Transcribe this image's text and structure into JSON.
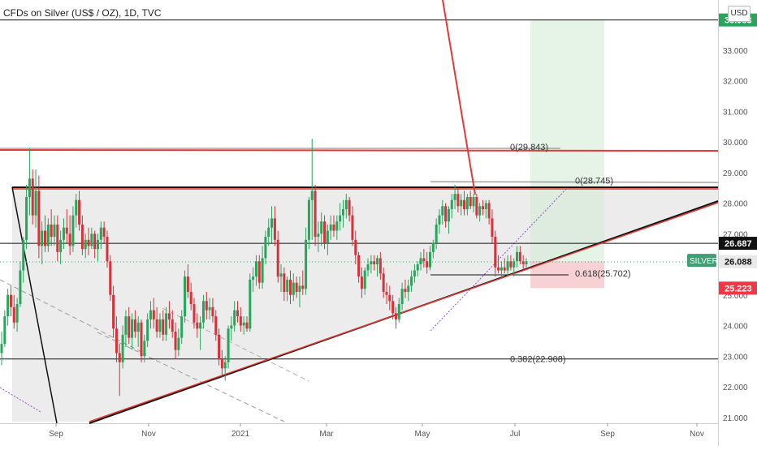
{
  "header": {
    "title": "CFDs on Silver (US$ / OZ), 1D, TVC",
    "currency": "USD"
  },
  "chart_data": {
    "type": "candlestick",
    "title": "CFDs on Silver (US$ / OZ), 1D, TVC",
    "symbol": "SILVER",
    "y_tick_labels": [
      "21.000",
      "22.000",
      "23.000",
      "24.000",
      "25.000",
      "26.000",
      "27.000",
      "28.000",
      "29.000",
      "30.000",
      "31.000",
      "32.000",
      "33.000"
    ],
    "x_tick_labels": [
      "Sep",
      "Nov",
      "2021",
      "Mar",
      "May",
      "Jul",
      "Sep",
      "Nov"
    ],
    "ylim": [
      20.9,
      34.4
    ],
    "price_badges": [
      {
        "text": "33.983",
        "value": 33.983,
        "bg": "#26a65b",
        "fg": "#ffffff"
      },
      {
        "text": "26.687",
        "value": 26.687,
        "bg": "#111111",
        "fg": "#ffffff"
      },
      {
        "text": "26.088",
        "value": 26.088,
        "bg": "#e9e9e9",
        "fg": "#111111"
      },
      {
        "text": "25.223",
        "value": 25.223,
        "bg": "#f23645",
        "fg": "#ffffff"
      }
    ],
    "symbol_badge": {
      "text": "SILVER",
      "value": 26.13,
      "bg": "#3f9f74",
      "fg": "#ffffff"
    },
    "horizontal_levels": [
      {
        "value": 33.983,
        "color": "#111111"
      },
      {
        "value": 26.687,
        "color": "#111111"
      },
      {
        "value": 22.908,
        "color": "#111111"
      }
    ],
    "fib_labels": [
      {
        "text": "0(29.843)",
        "value": 29.843
      },
      {
        "text": "0(28.745)",
        "value": 28.745
      },
      {
        "text": "0.618(25.702)",
        "value": 25.702
      },
      {
        "text": "0.382(22.908)",
        "value": 22.908
      }
    ],
    "position": {
      "entry": 26.1,
      "target": 33.983,
      "stop": 25.223
    },
    "candles_ohlc": [
      [
        23.1,
        23.8,
        22.7,
        23.4
      ],
      [
        23.4,
        24.5,
        23.3,
        24.3
      ],
      [
        24.3,
        25.2,
        24.0,
        25.0
      ],
      [
        25.0,
        25.3,
        24.3,
        24.6
      ],
      [
        24.6,
        25.0,
        23.9,
        24.1
      ],
      [
        24.1,
        24.9,
        23.8,
        24.7
      ],
      [
        24.7,
        26.1,
        24.6,
        25.8
      ],
      [
        25.8,
        26.9,
        25.4,
        26.8
      ],
      [
        26.8,
        28.6,
        26.5,
        28.2
      ],
      [
        28.2,
        29.8,
        27.6,
        28.8
      ],
      [
        28.8,
        29.1,
        27.3,
        27.6
      ],
      [
        27.6,
        29.1,
        27.2,
        28.4
      ],
      [
        28.4,
        28.9,
        26.2,
        26.6
      ],
      [
        26.6,
        27.4,
        26.0,
        27.1
      ],
      [
        27.1,
        27.6,
        26.4,
        26.6
      ],
      [
        26.6,
        27.5,
        26.4,
        27.3
      ],
      [
        27.3,
        27.8,
        26.6,
        26.9
      ],
      [
        26.9,
        27.6,
        26.6,
        27.3
      ],
      [
        27.3,
        27.6,
        26.1,
        26.4
      ],
      [
        26.4,
        27.1,
        26.0,
        26.8
      ],
      [
        26.8,
        27.5,
        26.5,
        27.2
      ],
      [
        27.2,
        27.8,
        26.7,
        27.0
      ],
      [
        27.0,
        27.6,
        26.3,
        26.6
      ],
      [
        26.6,
        27.9,
        26.4,
        27.6
      ],
      [
        27.6,
        28.3,
        27.2,
        28.1
      ],
      [
        28.1,
        28.4,
        27.1,
        27.3
      ],
      [
        27.3,
        27.6,
        26.3,
        26.5
      ],
      [
        26.5,
        27.0,
        26.2,
        26.8
      ],
      [
        26.8,
        27.2,
        26.3,
        26.6
      ],
      [
        26.6,
        27.2,
        26.5,
        27.0
      ],
      [
        27.0,
        27.1,
        26.2,
        26.5
      ],
      [
        26.5,
        27.0,
        26.1,
        26.8
      ],
      [
        26.8,
        27.4,
        26.5,
        27.2
      ],
      [
        27.2,
        27.4,
        26.7,
        26.9
      ],
      [
        26.9,
        27.1,
        25.9,
        26.1
      ],
      [
        26.1,
        26.3,
        24.8,
        25.0
      ],
      [
        25.0,
        25.3,
        23.6,
        23.9
      ],
      [
        23.9,
        24.3,
        22.8,
        23.1
      ],
      [
        23.1,
        23.4,
        21.7,
        22.8
      ],
      [
        22.8,
        24.0,
        22.6,
        23.7
      ],
      [
        23.7,
        24.5,
        23.3,
        24.3
      ],
      [
        24.3,
        24.6,
        23.4,
        23.6
      ],
      [
        23.6,
        24.4,
        23.2,
        24.2
      ],
      [
        24.2,
        24.5,
        23.6,
        23.8
      ],
      [
        23.8,
        24.3,
        23.3,
        24.1
      ],
      [
        24.1,
        24.2,
        22.8,
        23.0
      ],
      [
        23.0,
        23.7,
        22.8,
        23.5
      ],
      [
        23.5,
        24.4,
        23.3,
        24.2
      ],
      [
        24.2,
        24.8,
        23.9,
        24.5
      ],
      [
        24.5,
        24.9,
        23.9,
        24.2
      ],
      [
        24.2,
        24.6,
        23.6,
        23.8
      ],
      [
        23.8,
        24.4,
        23.6,
        24.2
      ],
      [
        24.2,
        24.5,
        23.5,
        23.7
      ],
      [
        23.7,
        24.6,
        23.5,
        24.4
      ],
      [
        24.4,
        24.8,
        23.9,
        24.2
      ],
      [
        24.2,
        24.5,
        23.6,
        23.8
      ],
      [
        23.8,
        24.1,
        22.9,
        23.2
      ],
      [
        23.2,
        23.9,
        23.0,
        23.6
      ],
      [
        23.6,
        24.5,
        23.4,
        24.3
      ],
      [
        24.3,
        25.8,
        24.1,
        25.6
      ],
      [
        25.6,
        26.0,
        24.9,
        25.1
      ],
      [
        25.1,
        25.4,
        24.5,
        24.7
      ],
      [
        24.7,
        24.9,
        23.9,
        24.1
      ],
      [
        24.1,
        24.4,
        23.6,
        23.9
      ],
      [
        23.9,
        24.3,
        23.2,
        24.1
      ],
      [
        24.1,
        25.0,
        23.9,
        24.8
      ],
      [
        24.8,
        25.1,
        24.2,
        24.5
      ],
      [
        24.5,
        24.9,
        24.2,
        24.6
      ],
      [
        24.6,
        24.9,
        24.1,
        24.3
      ],
      [
        24.3,
        24.5,
        23.5,
        23.7
      ],
      [
        23.7,
        23.9,
        22.7,
        22.9
      ],
      [
        22.9,
        23.2,
        22.3,
        22.6
      ],
      [
        22.6,
        23.0,
        22.2,
        22.8
      ],
      [
        22.8,
        24.0,
        22.6,
        23.9
      ],
      [
        23.9,
        24.3,
        23.5,
        24.0
      ],
      [
        24.0,
        24.8,
        23.8,
        24.5
      ],
      [
        24.5,
        24.8,
        24.1,
        24.3
      ],
      [
        24.3,
        24.6,
        23.8,
        24.0
      ],
      [
        24.0,
        24.3,
        23.7,
        24.1
      ],
      [
        24.1,
        24.3,
        23.8,
        23.9
      ],
      [
        23.9,
        25.7,
        23.8,
        25.5
      ],
      [
        25.5,
        25.9,
        25.1,
        25.6
      ],
      [
        25.6,
        26.3,
        25.3,
        26.1
      ],
      [
        26.1,
        26.3,
        25.2,
        25.4
      ],
      [
        25.4,
        26.6,
        25.2,
        26.2
      ],
      [
        26.2,
        27.1,
        26.0,
        26.9
      ],
      [
        26.9,
        27.5,
        26.6,
        27.2
      ],
      [
        27.2,
        27.9,
        26.7,
        27.5
      ],
      [
        27.5,
        27.9,
        26.6,
        26.8
      ],
      [
        26.8,
        27.1,
        25.4,
        25.6
      ],
      [
        25.6,
        26.0,
        25.1,
        25.7
      ],
      [
        25.7,
        25.9,
        24.8,
        25.1
      ],
      [
        25.1,
        25.6,
        24.8,
        25.5
      ],
      [
        25.5,
        25.8,
        24.7,
        25.0
      ],
      [
        25.0,
        25.7,
        24.8,
        25.4
      ],
      [
        25.4,
        25.6,
        24.9,
        25.1
      ],
      [
        25.1,
        25.6,
        24.6,
        25.3
      ],
      [
        25.3,
        25.8,
        25.0,
        25.2
      ],
      [
        25.2,
        27.2,
        25.0,
        26.8
      ],
      [
        26.8,
        28.2,
        26.5,
        28.1
      ],
      [
        28.1,
        30.1,
        26.8,
        28.4
      ],
      [
        28.4,
        28.6,
        26.6,
        26.9
      ],
      [
        26.9,
        27.4,
        26.4,
        27.0
      ],
      [
        27.0,
        27.7,
        26.6,
        27.4
      ],
      [
        27.4,
        27.6,
        26.5,
        26.7
      ],
      [
        26.7,
        27.3,
        26.3,
        27.1
      ],
      [
        27.1,
        27.6,
        26.8,
        27.3
      ],
      [
        27.3,
        27.6,
        26.9,
        27.1
      ],
      [
        27.1,
        27.6,
        26.8,
        27.4
      ],
      [
        27.4,
        28.0,
        27.1,
        27.6
      ],
      [
        27.6,
        28.1,
        27.2,
        27.8
      ],
      [
        27.8,
        28.3,
        27.5,
        28.1
      ],
      [
        28.1,
        28.2,
        27.4,
        27.6
      ],
      [
        27.6,
        27.9,
        26.6,
        26.8
      ],
      [
        26.8,
        27.1,
        26.0,
        26.3
      ],
      [
        26.3,
        26.4,
        25.4,
        25.6
      ],
      [
        25.6,
        25.9,
        24.9,
        25.2
      ],
      [
        25.2,
        25.9,
        25.0,
        25.8
      ],
      [
        25.8,
        26.2,
        25.6,
        26.0
      ],
      [
        26.0,
        26.3,
        25.7,
        26.1
      ],
      [
        26.1,
        26.3,
        25.8,
        26.0
      ],
      [
        26.0,
        26.3,
        25.6,
        26.2
      ],
      [
        26.2,
        26.4,
        25.5,
        25.7
      ],
      [
        25.7,
        25.9,
        24.9,
        25.1
      ],
      [
        25.1,
        25.4,
        24.7,
        25.0
      ],
      [
        25.0,
        25.3,
        24.5,
        24.8
      ],
      [
        24.8,
        25.0,
        24.2,
        24.4
      ],
      [
        24.4,
        24.6,
        23.9,
        24.2
      ],
      [
        24.2,
        24.9,
        24.1,
        24.7
      ],
      [
        24.7,
        25.4,
        24.5,
        25.2
      ],
      [
        25.2,
        25.5,
        24.9,
        25.1
      ],
      [
        25.1,
        25.5,
        24.8,
        25.3
      ],
      [
        25.3,
        25.8,
        25.1,
        25.6
      ],
      [
        25.6,
        26.0,
        25.4,
        25.8
      ],
      [
        25.8,
        26.1,
        25.6,
        26.0
      ],
      [
        26.0,
        26.4,
        25.8,
        26.2
      ],
      [
        26.2,
        26.5,
        25.9,
        26.1
      ],
      [
        26.1,
        26.4,
        25.7,
        25.9
      ],
      [
        25.9,
        26.6,
        25.8,
        26.4
      ],
      [
        26.4,
        26.8,
        26.2,
        26.7
      ],
      [
        26.7,
        27.5,
        26.5,
        27.3
      ],
      [
        27.3,
        27.8,
        27.0,
        27.6
      ],
      [
        27.6,
        28.1,
        27.3,
        27.9
      ],
      [
        27.9,
        28.0,
        27.2,
        27.4
      ],
      [
        27.4,
        27.9,
        27.0,
        27.8
      ],
      [
        27.8,
        28.3,
        27.5,
        28.1
      ],
      [
        28.1,
        28.6,
        27.8,
        28.3
      ],
      [
        28.3,
        28.5,
        27.7,
        27.9
      ],
      [
        27.9,
        28.3,
        27.6,
        28.1
      ],
      [
        28.1,
        28.4,
        27.6,
        27.8
      ],
      [
        27.8,
        28.3,
        27.6,
        28.2
      ],
      [
        28.2,
        28.4,
        27.8,
        27.9
      ],
      [
        27.9,
        28.3,
        27.7,
        28.2
      ],
      [
        28.2,
        28.3,
        27.5,
        27.6
      ],
      [
        27.6,
        28.0,
        27.4,
        27.9
      ],
      [
        27.9,
        28.1,
        27.6,
        27.8
      ],
      [
        27.8,
        28.1,
        27.5,
        28.0
      ],
      [
        28.0,
        28.1,
        27.3,
        27.5
      ],
      [
        27.5,
        27.8,
        26.7,
        26.9
      ],
      [
        26.9,
        27.1,
        25.6,
        25.9
      ],
      [
        25.9,
        26.3,
        25.7,
        25.8
      ],
      [
        25.8,
        26.1,
        25.6,
        25.9
      ],
      [
        25.9,
        26.2,
        25.7,
        25.8
      ],
      [
        25.8,
        26.3,
        25.6,
        26.1
      ],
      [
        26.1,
        26.3,
        25.8,
        25.9
      ],
      [
        25.9,
        26.2,
        25.6,
        26.1
      ],
      [
        26.1,
        26.6,
        25.9,
        26.4
      ],
      [
        26.4,
        26.6,
        26.0,
        26.1
      ],
      [
        26.1,
        26.3,
        25.8,
        26.0
      ],
      [
        26.0,
        26.2,
        25.9,
        26.1
      ]
    ]
  }
}
